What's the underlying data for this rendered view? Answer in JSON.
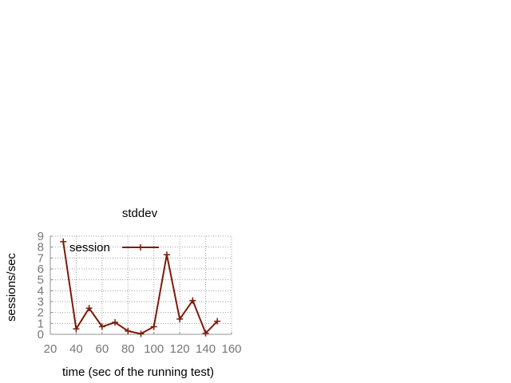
{
  "chart_data": {
    "type": "line",
    "title": "stddev",
    "xlabel": "time (sec of the running test)",
    "ylabel": "sessions/sec",
    "xlim": [
      20,
      160
    ],
    "ylim": [
      0,
      9
    ],
    "xticks": [
      20,
      40,
      60,
      80,
      100,
      120,
      140,
      160
    ],
    "yticks": [
      0,
      1,
      2,
      3,
      4,
      5,
      6,
      7,
      8,
      9
    ],
    "grid": true,
    "legend_position": "top-left",
    "series": [
      {
        "name": "session",
        "color": "#7f1a0a",
        "marker": "plus",
        "x": [
          30,
          40,
          50,
          60,
          70,
          80,
          90,
          100,
          110,
          120,
          130,
          140,
          149
        ],
        "y": [
          8.5,
          0.5,
          2.4,
          0.7,
          1.1,
          0.3,
          0.05,
          0.7,
          7.3,
          1.4,
          3.1,
          0.1,
          1.2
        ]
      }
    ]
  }
}
